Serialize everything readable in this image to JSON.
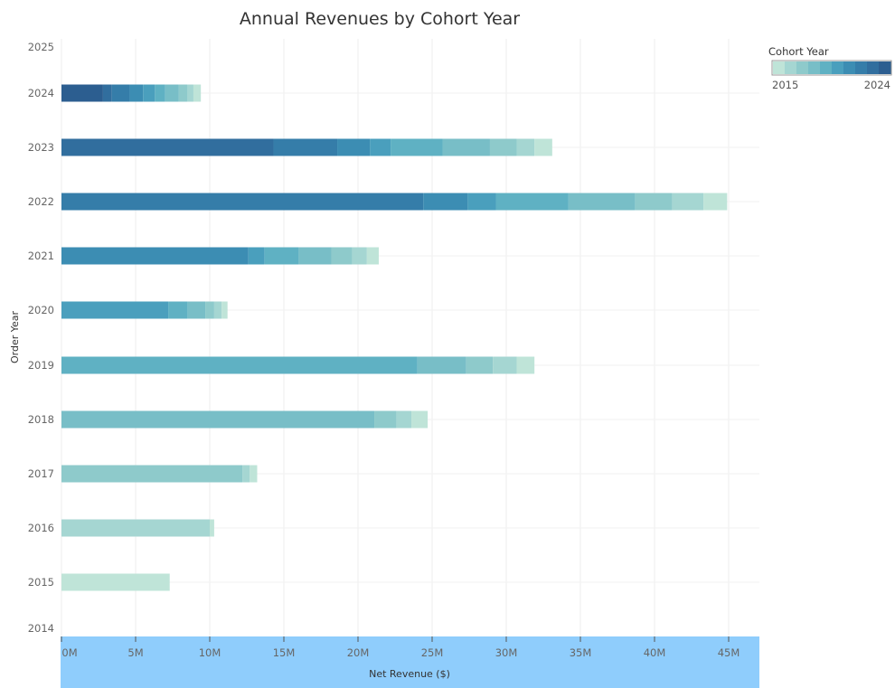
{
  "chart_data": {
    "type": "bar",
    "orientation": "horizontal",
    "stacked": true,
    "title": "Annual Revenues by Cohort Year",
    "xlabel": "Net Revenue ($)",
    "ylabel": "Order Year",
    "xlim": [
      0,
      47
    ],
    "x_unit": "M",
    "x_ticks": [
      "0M",
      "5M",
      "10M",
      "15M",
      "20M",
      "25M",
      "30M",
      "35M",
      "40M",
      "45M"
    ],
    "x_tick_values": [
      0,
      5,
      10,
      15,
      20,
      25,
      30,
      35,
      40,
      45
    ],
    "categories": [
      "2025",
      "2024",
      "2023",
      "2022",
      "2021",
      "2020",
      "2019",
      "2018",
      "2017",
      "2016",
      "2015",
      "2014"
    ],
    "grid": true,
    "legend": {
      "title": "Cohort Year",
      "placement": "top-right",
      "min_label": "2015",
      "max_label": "2024"
    },
    "cohort_colors": {
      "2015": "#bfe4d8",
      "2016": "#a5d6d2",
      "2017": "#8ecacb",
      "2018": "#78bec7",
      "2019": "#5fb1c3",
      "2020": "#4a9fbd",
      "2021": "#3c8db3",
      "2022": "#357da9",
      "2023": "#316e9e",
      "2024": "#2c5e90"
    },
    "series": [
      {
        "order_year": "2024",
        "segments": [
          {
            "cohort": "2024",
            "value": 2.8
          },
          {
            "cohort": "2023",
            "value": 0.6
          },
          {
            "cohort": "2022",
            "value": 1.2
          },
          {
            "cohort": "2021",
            "value": 0.9
          },
          {
            "cohort": "2020",
            "value": 0.8
          },
          {
            "cohort": "2019",
            "value": 0.7
          },
          {
            "cohort": "2018",
            "value": 0.9
          },
          {
            "cohort": "2017",
            "value": 0.6
          },
          {
            "cohort": "2016",
            "value": 0.4
          },
          {
            "cohort": "2015",
            "value": 0.5
          }
        ]
      },
      {
        "order_year": "2023",
        "segments": [
          {
            "cohort": "2023",
            "value": 14.3
          },
          {
            "cohort": "2022",
            "value": 4.3
          },
          {
            "cohort": "2021",
            "value": 2.2
          },
          {
            "cohort": "2020",
            "value": 1.4
          },
          {
            "cohort": "2019",
            "value": 3.5
          },
          {
            "cohort": "2018",
            "value": 3.2
          },
          {
            "cohort": "2017",
            "value": 1.8
          },
          {
            "cohort": "2016",
            "value": 1.2
          },
          {
            "cohort": "2015",
            "value": 1.2
          }
        ]
      },
      {
        "order_year": "2022",
        "segments": [
          {
            "cohort": "2022",
            "value": 24.4
          },
          {
            "cohort": "2021",
            "value": 3.0
          },
          {
            "cohort": "2020",
            "value": 1.9
          },
          {
            "cohort": "2019",
            "value": 4.9
          },
          {
            "cohort": "2018",
            "value": 4.5
          },
          {
            "cohort": "2017",
            "value": 2.5
          },
          {
            "cohort": "2016",
            "value": 2.1
          },
          {
            "cohort": "2015",
            "value": 1.6
          }
        ]
      },
      {
        "order_year": "2021",
        "segments": [
          {
            "cohort": "2021",
            "value": 12.6
          },
          {
            "cohort": "2020",
            "value": 1.1
          },
          {
            "cohort": "2019",
            "value": 2.3
          },
          {
            "cohort": "2018",
            "value": 2.2
          },
          {
            "cohort": "2017",
            "value": 1.4
          },
          {
            "cohort": "2016",
            "value": 1.0
          },
          {
            "cohort": "2015",
            "value": 0.8
          }
        ]
      },
      {
        "order_year": "2020",
        "segments": [
          {
            "cohort": "2020",
            "value": 7.2
          },
          {
            "cohort": "2019",
            "value": 1.3
          },
          {
            "cohort": "2018",
            "value": 1.2
          },
          {
            "cohort": "2017",
            "value": 0.6
          },
          {
            "cohort": "2016",
            "value": 0.5
          },
          {
            "cohort": "2015",
            "value": 0.4
          }
        ]
      },
      {
        "order_year": "2019",
        "segments": [
          {
            "cohort": "2019",
            "value": 24.0
          },
          {
            "cohort": "2018",
            "value": 3.3
          },
          {
            "cohort": "2017",
            "value": 1.8
          },
          {
            "cohort": "2016",
            "value": 1.6
          },
          {
            "cohort": "2015",
            "value": 1.2
          }
        ]
      },
      {
        "order_year": "2018",
        "segments": [
          {
            "cohort": "2018",
            "value": 21.1
          },
          {
            "cohort": "2017",
            "value": 1.5
          },
          {
            "cohort": "2016",
            "value": 1.0
          },
          {
            "cohort": "2015",
            "value": 1.1
          }
        ]
      },
      {
        "order_year": "2017",
        "segments": [
          {
            "cohort": "2017",
            "value": 12.2
          },
          {
            "cohort": "2016",
            "value": 0.5
          },
          {
            "cohort": "2015",
            "value": 0.5
          }
        ]
      },
      {
        "order_year": "2016",
        "segments": [
          {
            "cohort": "2016",
            "value": 10.0
          },
          {
            "cohort": "2015",
            "value": 0.3
          }
        ]
      },
      {
        "order_year": "2015",
        "segments": [
          {
            "cohort": "2015",
            "value": 7.3
          }
        ]
      }
    ]
  },
  "axis_band_color": "#8fcdfc"
}
